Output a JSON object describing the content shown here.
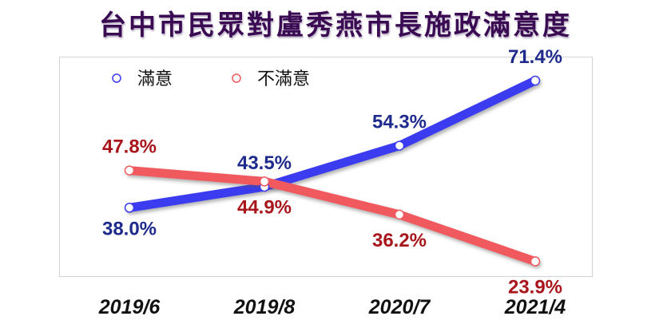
{
  "title": "台中市民眾對盧秀燕市長施政滿意度",
  "chart_data": {
    "type": "line",
    "title": "台中市民眾對盧秀燕市長施政滿意度",
    "categories": [
      "2019/6",
      "2019/8",
      "2020/7",
      "2021/4"
    ],
    "series": [
      {
        "name": "滿意",
        "values": [
          38.0,
          43.5,
          54.3,
          71.4
        ],
        "labels": [
          "38.0%",
          "43.5%",
          "54.3%",
          "71.4%"
        ],
        "color": "#3a3af0",
        "label_color": "#1e2b8c"
      },
      {
        "name": "不滿意",
        "values": [
          47.8,
          44.9,
          36.2,
          23.9
        ],
        "labels": [
          "47.8%",
          "44.9%",
          "36.2%",
          "23.9%"
        ],
        "color": "#f05a5e",
        "label_color": "#a8161c"
      }
    ],
    "legend": "top-left",
    "grid": false,
    "ylim": [
      15,
      80
    ]
  }
}
